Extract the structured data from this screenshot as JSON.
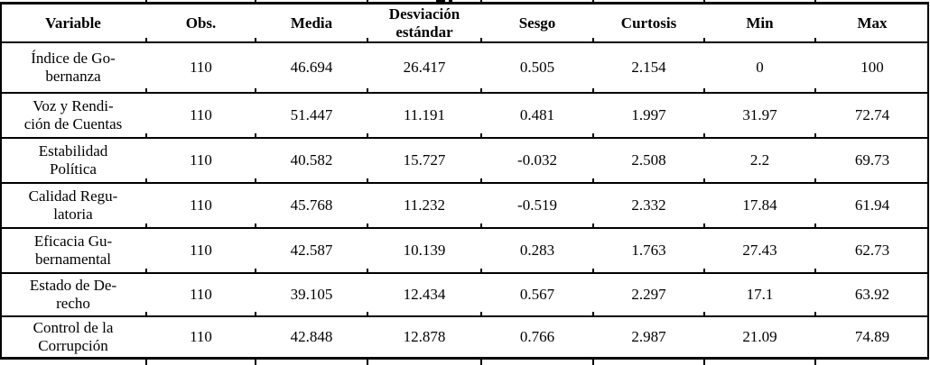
{
  "table": {
    "columns": [
      "Variable",
      "Obs.",
      "Media",
      "Desviación\nestándar",
      "Sesgo",
      "Curtosis",
      "Min",
      "Max"
    ],
    "rows": [
      [
        "Índice de Go-\nbernanza",
        "110",
        "46.694",
        "26.417",
        "0.505",
        "2.154",
        "0",
        "100"
      ],
      [
        "Voz y Rendi-\nción de Cuentas",
        "110",
        "51.447",
        "11.191",
        "0.481",
        "1.997",
        "31.97",
        "72.74"
      ],
      [
        "Estabilidad\nPolítica",
        "110",
        "40.582",
        "15.727",
        "-0.032",
        "2.508",
        "2.2",
        "69.73"
      ],
      [
        "Calidad Regu-\nlatoria",
        "110",
        "45.768",
        "11.232",
        "-0.519",
        "2.332",
        "17.84",
        "61.94"
      ],
      [
        "Eficacia Gu-\nbernamental",
        "110",
        "42.587",
        "10.139",
        "0.283",
        "1.763",
        "27.43",
        "62.73"
      ],
      [
        "Estado de De-\nrecho",
        "110",
        "39.105",
        "12.434",
        "0.567",
        "2.297",
        "17.1",
        "63.92"
      ],
      [
        "Control de la\nCorrupción",
        "110",
        "42.848",
        "12.878",
        "0.766",
        "2.987",
        "21.09",
        "74.89"
      ]
    ]
  },
  "colors": {
    "text": "#000000",
    "background": "#ffffff",
    "rule": "#000000"
  }
}
